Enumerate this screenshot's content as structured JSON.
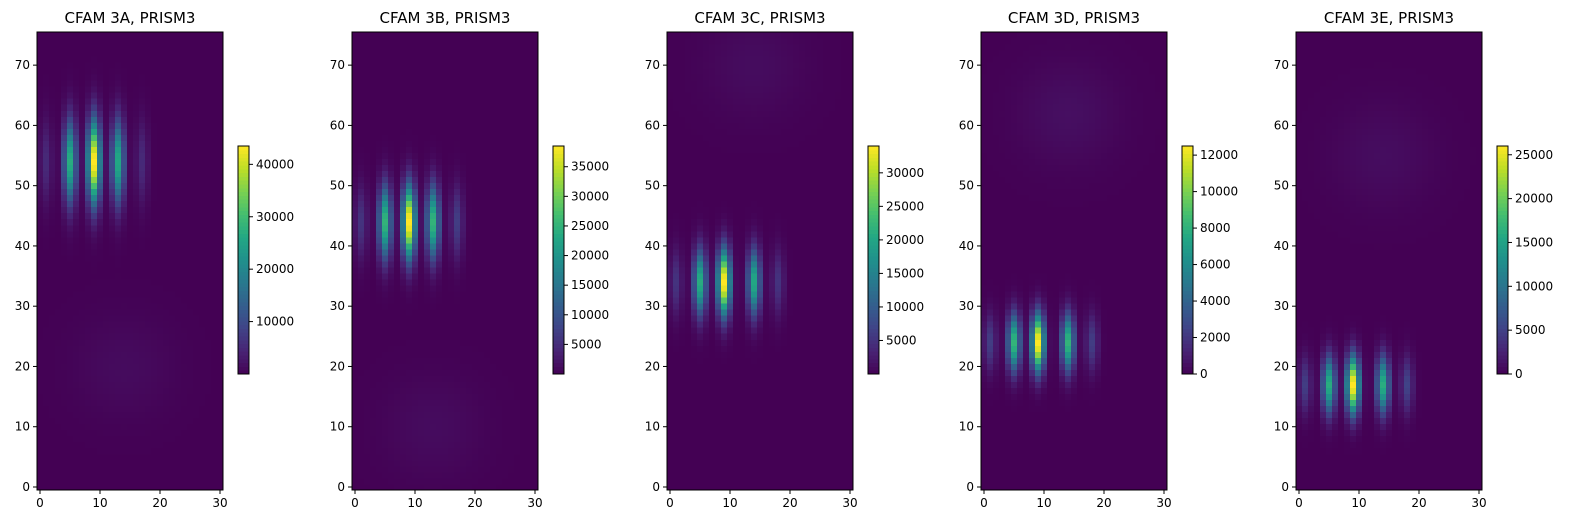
{
  "chart_data": [
    {
      "type": "heatmap",
      "title": "CFAM 3A, PRISM3",
      "x_ticks": [
        0,
        10,
        20,
        30
      ],
      "y_ticks": [
        0,
        10,
        20,
        30,
        40,
        50,
        60,
        70
      ],
      "x_range": [
        -0.5,
        30.5
      ],
      "y_range": [
        -0.5,
        75.5
      ],
      "colorbar_ticks": [
        10000,
        20000,
        30000,
        40000
      ],
      "colorbar_range": [
        0,
        43500
      ],
      "colormap": "viridis",
      "hotspot": {
        "center_x": 9,
        "center_y": 54,
        "peak": 43500,
        "stripes_x": [
          1,
          5,
          9,
          13,
          17
        ],
        "stripe_weights": [
          0.12,
          0.62,
          1.0,
          0.6,
          0.12
        ],
        "sigma_y": 4.8
      },
      "secondary_blob": {
        "center_x": 14,
        "center_y": 20,
        "peak": 1300
      }
    },
    {
      "type": "heatmap",
      "title": "CFAM 3B, PRISM3",
      "x_ticks": [
        0,
        10,
        20,
        30
      ],
      "y_ticks": [
        0,
        10,
        20,
        30,
        40,
        50,
        60,
        70
      ],
      "x_range": [
        -0.5,
        30.5
      ],
      "y_range": [
        -0.5,
        75.5
      ],
      "colorbar_ticks": [
        5000,
        10000,
        15000,
        20000,
        25000,
        30000,
        35000
      ],
      "colorbar_range": [
        0,
        38500
      ],
      "colormap": "viridis",
      "hotspot": {
        "center_x": 9,
        "center_y": 44,
        "peak": 38500,
        "stripes_x": [
          1,
          5,
          9,
          13,
          17
        ],
        "stripe_weights": [
          0.15,
          0.65,
          1.0,
          0.65,
          0.18
        ],
        "sigma_y": 4.2
      },
      "secondary_blob": {
        "center_x": 13,
        "center_y": 10,
        "peak": 1200
      }
    },
    {
      "type": "heatmap",
      "title": "CFAM 3C, PRISM3",
      "x_ticks": [
        0,
        10,
        20,
        30
      ],
      "y_ticks": [
        0,
        10,
        20,
        30,
        40,
        50,
        60,
        70
      ],
      "x_range": [
        -0.5,
        30.5
      ],
      "y_range": [
        -0.5,
        75.5
      ],
      "colorbar_ticks": [
        5000,
        10000,
        15000,
        20000,
        25000,
        30000
      ],
      "colorbar_range": [
        0,
        34000
      ],
      "colormap": "viridis",
      "hotspot": {
        "center_x": 9,
        "center_y": 34,
        "peak": 34000,
        "stripes_x": [
          1,
          5,
          9,
          14,
          18
        ],
        "stripe_weights": [
          0.15,
          0.62,
          1.0,
          0.6,
          0.15
        ],
        "sigma_y": 3.8
      },
      "secondary_blob": {
        "center_x": 14,
        "center_y": 70,
        "peak": 1100
      }
    },
    {
      "type": "heatmap",
      "title": "CFAM 3D, PRISM3",
      "x_ticks": [
        0,
        10,
        20,
        30
      ],
      "y_ticks": [
        0,
        10,
        20,
        30,
        40,
        50,
        60,
        70
      ],
      "x_range": [
        -0.5,
        30.5
      ],
      "y_range": [
        -0.5,
        75.5
      ],
      "colorbar_ticks": [
        0,
        2000,
        4000,
        6000,
        8000,
        10000,
        12000
      ],
      "colorbar_range": [
        0,
        12500
      ],
      "colormap": "viridis",
      "hotspot": {
        "center_x": 9,
        "center_y": 24,
        "peak": 12500,
        "stripes_x": [
          1,
          5,
          9,
          14,
          18
        ],
        "stripe_weights": [
          0.18,
          0.65,
          1.0,
          0.65,
          0.18
        ],
        "sigma_y": 3.3
      },
      "secondary_blob": {
        "center_x": 14,
        "center_y": 62,
        "peak": 500
      }
    },
    {
      "type": "heatmap",
      "title": "CFAM 3E, PRISM3",
      "x_ticks": [
        0,
        10,
        20,
        30
      ],
      "y_ticks": [
        0,
        10,
        20,
        30,
        40,
        50,
        60,
        70
      ],
      "x_range": [
        -0.5,
        30.5
      ],
      "y_range": [
        -0.5,
        75.5
      ],
      "colorbar_ticks": [
        0,
        5000,
        10000,
        15000,
        20000,
        25000
      ],
      "colorbar_range": [
        0,
        26000
      ],
      "colormap": "viridis",
      "hotspot": {
        "center_x": 9,
        "center_y": 17,
        "peak": 26000,
        "stripes_x": [
          1,
          5,
          9,
          14,
          18
        ],
        "stripe_weights": [
          0.18,
          0.62,
          1.0,
          0.62,
          0.2
        ],
        "sigma_y": 3.3
      },
      "secondary_blob": {
        "center_x": 14,
        "center_y": 55,
        "peak": 900
      }
    }
  ]
}
